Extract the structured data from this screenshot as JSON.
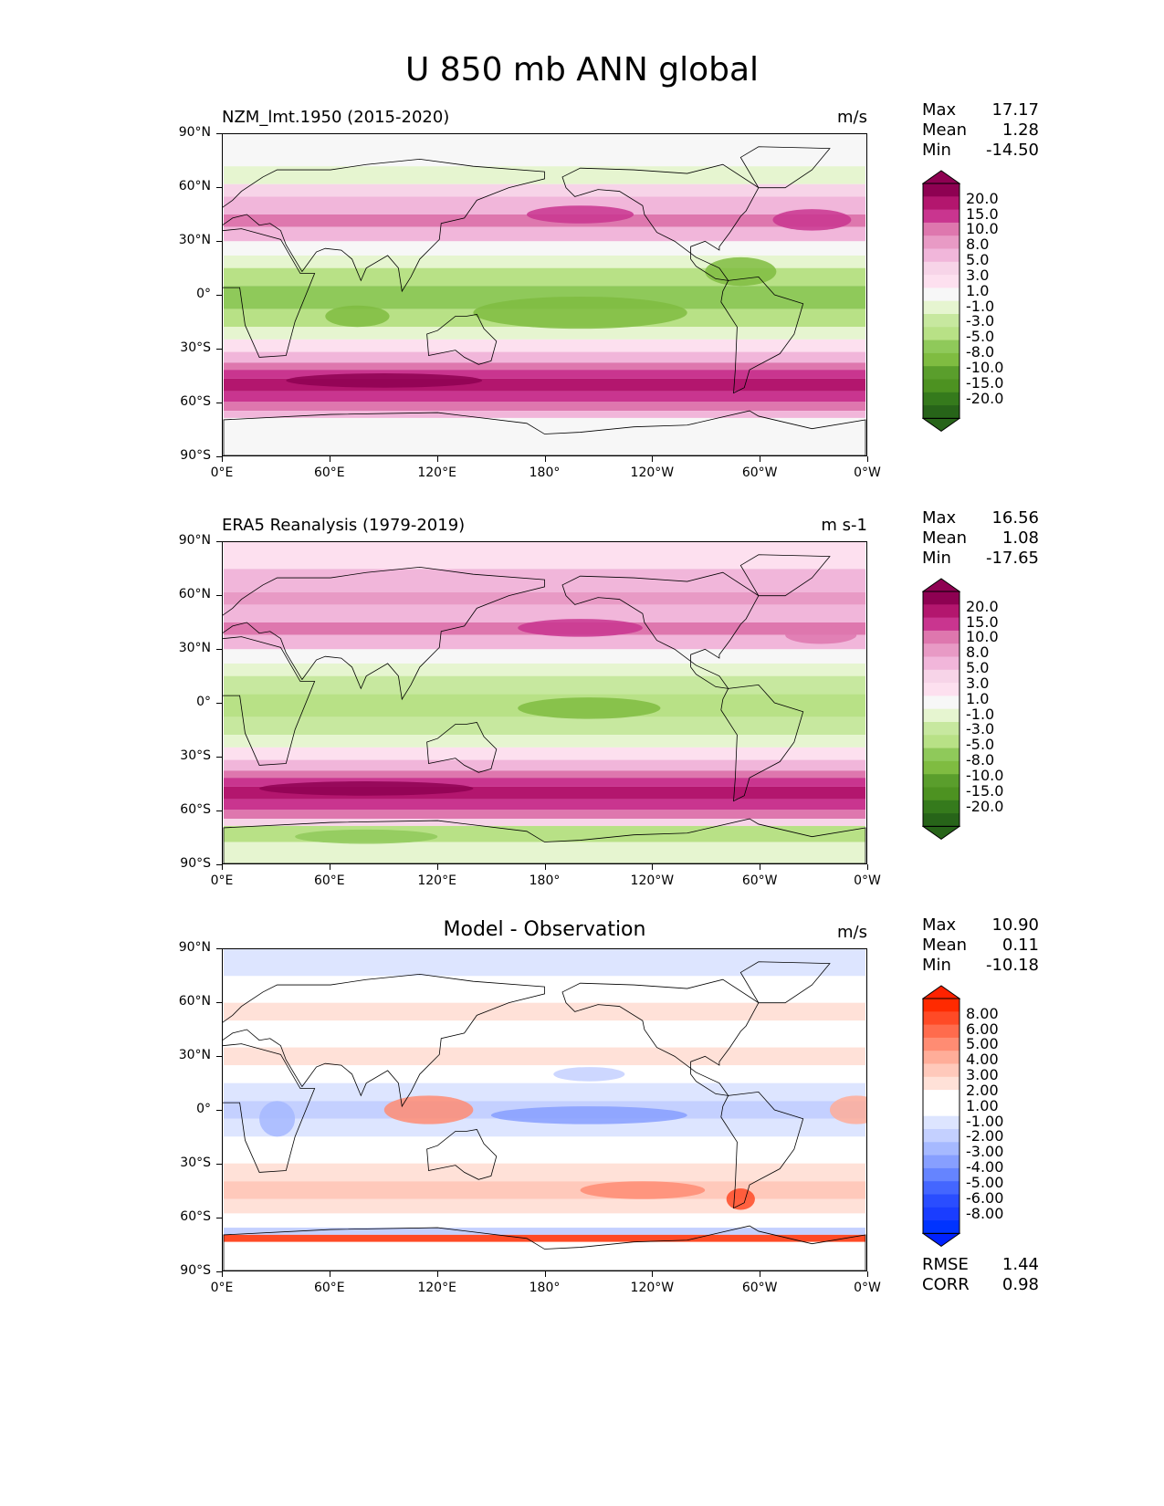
{
  "figure": {
    "title": "U 850 mb ANN global",
    "x_ticks": [
      "0°E",
      "60°E",
      "120°E",
      "180°",
      "120°W",
      "60°W",
      "0°W"
    ],
    "y_ticks": [
      "90°N",
      "60°N",
      "30°N",
      "0°",
      "30°S",
      "60°S",
      "90°S"
    ]
  },
  "panels": [
    {
      "id": "model",
      "title_left": "NZM_lmt.1950 (2015-2020)",
      "title_center": "",
      "units": "m/s",
      "stats": [
        {
          "label": "Max",
          "value": "17.17"
        },
        {
          "label": "Mean",
          "value": "1.28"
        },
        {
          "label": "Min",
          "value": "-14.50"
        }
      ],
      "colorbar_labels": [
        "20.0",
        "15.0",
        "10.0",
        "8.0",
        "5.0",
        "3.0",
        "1.0",
        "-1.0",
        "-3.0",
        "-5.0",
        "-8.0",
        "-10.0",
        "-15.0",
        "-20.0"
      ],
      "colorbar_colors": [
        "#8e0152",
        "#b3166e",
        "#c9358f",
        "#de77ae",
        "#e89ac5",
        "#f1b6da",
        "#f7d4e8",
        "#fde0ef",
        "#f7f7f7",
        "#e6f5d0",
        "#c7e89f",
        "#b8e186",
        "#8fc95a",
        "#7fbc41",
        "#5a9e2c",
        "#4d9221",
        "#357a1c",
        "#276419"
      ],
      "extend_top": "#8e0152",
      "extend_bottom": "#276419"
    },
    {
      "id": "obs",
      "title_left": "ERA5 Reanalysis (1979-2019)",
      "title_center": "",
      "units": "m s-1",
      "stats": [
        {
          "label": "Max",
          "value": "16.56"
        },
        {
          "label": "Mean",
          "value": "1.08"
        },
        {
          "label": "Min",
          "value": "-17.65"
        }
      ],
      "colorbar_labels": [
        "20.0",
        "15.0",
        "10.0",
        "8.0",
        "5.0",
        "3.0",
        "1.0",
        "-1.0",
        "-3.0",
        "-5.0",
        "-8.0",
        "-10.0",
        "-15.0",
        "-20.0"
      ],
      "colorbar_colors": [
        "#8e0152",
        "#b3166e",
        "#c9358f",
        "#de77ae",
        "#e89ac5",
        "#f1b6da",
        "#f7d4e8",
        "#fde0ef",
        "#f7f7f7",
        "#e6f5d0",
        "#c7e89f",
        "#b8e186",
        "#8fc95a",
        "#7fbc41",
        "#5a9e2c",
        "#4d9221",
        "#357a1c",
        "#276419"
      ],
      "extend_top": "#8e0152",
      "extend_bottom": "#276419"
    },
    {
      "id": "diff",
      "title_left": "",
      "title_center": "Model - Observation",
      "units": "m/s",
      "stats": [
        {
          "label": "Max",
          "value": "10.90"
        },
        {
          "label": "Mean",
          "value": "0.11"
        },
        {
          "label": "Min",
          "value": "-10.18"
        }
      ],
      "colorbar_labels": [
        "8.00",
        "6.00",
        "5.00",
        "4.00",
        "3.00",
        "2.00",
        "1.00",
        "-1.00",
        "-2.00",
        "-3.00",
        "-4.00",
        "-5.00",
        "-6.00",
        "-8.00"
      ],
      "colorbar_colors": [
        "#ff2a00",
        "#ff4a26",
        "#ff6b4d",
        "#ff8c73",
        "#ffad99",
        "#ffc9bb",
        "#ffe1d8",
        "#ffffff",
        "#ffffff",
        "#dde5ff",
        "#c4d0ff",
        "#a6b9ff",
        "#879fff",
        "#6584ff",
        "#4466ff",
        "#2a4dff",
        "#1a3dff",
        "#0033ff"
      ],
      "extend_top": "#ff2200",
      "extend_bottom": "#0022ff",
      "extra_stats": [
        {
          "label": "RMSE",
          "value": "1.44"
        },
        {
          "label": "CORR",
          "value": "0.98"
        }
      ]
    }
  ]
}
